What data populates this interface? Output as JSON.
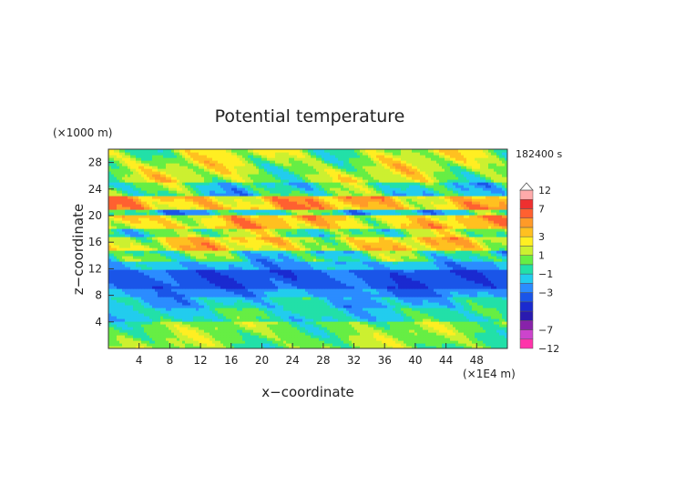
{
  "chart_data": {
    "type": "heatmap",
    "title": "Potential temperature",
    "xlabel": "x−coordinate",
    "ylabel": "z−coordinate",
    "x_unit": "(×1E4 m)",
    "y_unit": "(×1000 m)",
    "time_label": "182400 s",
    "xlim": [
      0,
      52
    ],
    "ylim": [
      0,
      30
    ],
    "x_ticks": [
      4,
      8,
      12,
      16,
      20,
      24,
      28,
      32,
      36,
      40,
      44,
      48
    ],
    "y_ticks": [
      4,
      8,
      12,
      16,
      20,
      24,
      28
    ],
    "colorbar": {
      "tick_labels": [
        "12",
        "7",
        "3",
        "1",
        "−1",
        "−3",
        "−7",
        "−12"
      ],
      "tick_values": [
        12,
        7,
        3,
        1,
        -1,
        -3,
        -7,
        -12
      ],
      "levels": [
        -12,
        -9,
        -7,
        -6,
        -5,
        -4,
        -3,
        -2,
        -1,
        0,
        1,
        2,
        3,
        4,
        5,
        7,
        9,
        12
      ],
      "colors": [
        "#ff33aa",
        "#cc44cc",
        "#8822aa",
        "#2a1ab0",
        "#1a2ad0",
        "#1a55e8",
        "#2b8cff",
        "#22ccee",
        "#22e0a8",
        "#66ee44",
        "#ccf030",
        "#ffee22",
        "#ffc020",
        "#ff9a28",
        "#ff6030",
        "#ee3030",
        "#ffaaaa"
      ]
    },
    "bands": [
      {
        "z": [
          0,
          4
        ],
        "value": 0.6
      },
      {
        "z": [
          4,
          6
        ],
        "value": -0.8
      },
      {
        "z": [
          6,
          8
        ],
        "value": -1.5
      },
      {
        "z": [
          8,
          9
        ],
        "value": -2.5
      },
      {
        "z": [
          9,
          12
        ],
        "value": -3.5
      },
      {
        "z": [
          12,
          13
        ],
        "value": -2
      },
      {
        "z": [
          13,
          15
        ],
        "value": -0.5
      },
      {
        "z": [
          15,
          17
        ],
        "value": 2.5
      },
      {
        "z": [
          17,
          18
        ],
        "value": 0.5
      },
      {
        "z": [
          18,
          20
        ],
        "value": 3
      },
      {
        "z": [
          20,
          21
        ],
        "value": -1
      },
      {
        "z": [
          21,
          23
        ],
        "value": 3.5
      },
      {
        "z": [
          23,
          25
        ],
        "value": -0.5
      },
      {
        "z": [
          25,
          30
        ],
        "value": 1.2
      }
    ]
  }
}
